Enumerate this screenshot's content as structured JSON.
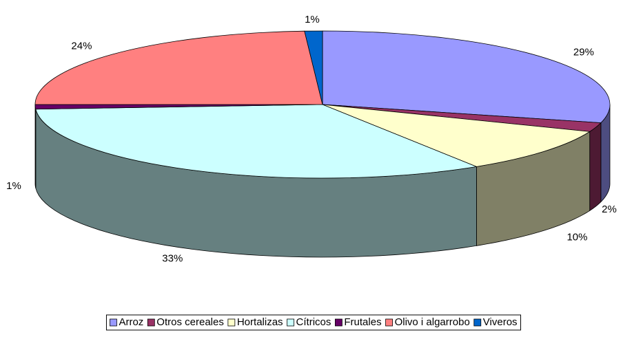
{
  "chart_data": {
    "type": "pie3d",
    "categories": [
      "Arroz",
      "Otros cereales",
      "Hortalizas",
      "Cítricos",
      "Frutales",
      "Olivo i algarrobo",
      "Viveros"
    ],
    "values": [
      29,
      2,
      10,
      33,
      1,
      24,
      1
    ],
    "value_labels": [
      "29%",
      "2%",
      "10%",
      "33%",
      "1%",
      "24%",
      "1%"
    ],
    "colors": [
      "#9999ff",
      "#993366",
      "#ffffcc",
      "#ccffff",
      "#660066",
      "#ff8080",
      "#0066cc"
    ],
    "legend": "bottom"
  }
}
